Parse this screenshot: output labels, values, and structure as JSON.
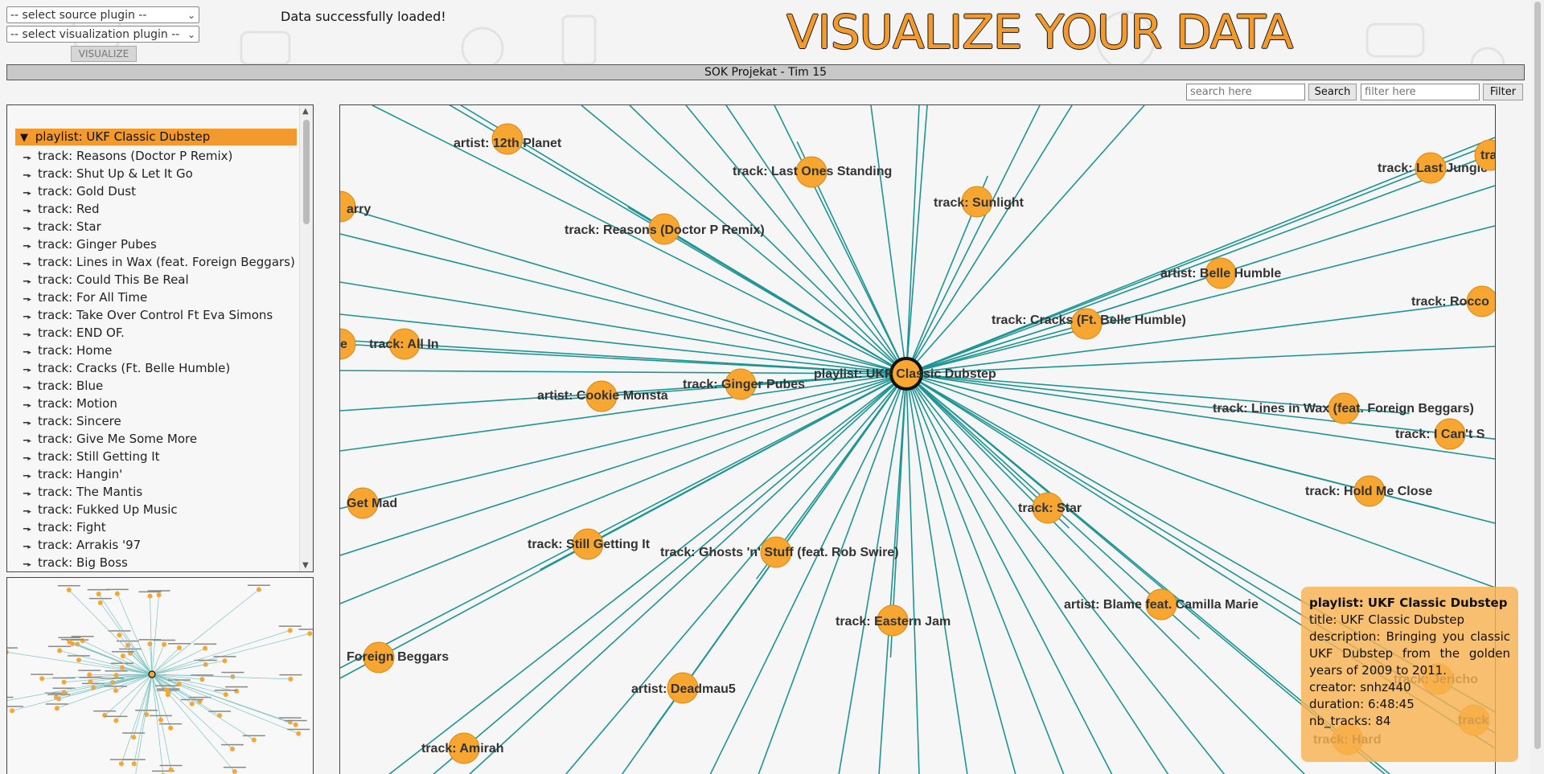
{
  "controls": {
    "source_select": "-- select source plugin --",
    "vis_select": "-- select visualization plugin --",
    "visualize_label": "VISUALIZE",
    "status": "Data successfully loaded!",
    "brand_title": "VISUALIZE YOUR DATA",
    "header": "SOK Projekat - Tim 15",
    "search_placeholder": "search here",
    "search_label": "Search",
    "filter_placeholder": "filter here",
    "filter_label": "Filter"
  },
  "tree": {
    "root": "playlist: UKF Classic Dubstep",
    "items": [
      "track: Reasons (Doctor P Remix)",
      "track: Shut Up & Let It Go",
      "track: Gold Dust",
      "track: Red",
      "track: Star",
      "track: Ginger Pubes",
      "track: Lines in Wax (feat. Foreign Beggars)",
      "track: Could This Be Real",
      "track: For All Time",
      "track: Take Over Control Ft Eva Simons",
      "track: END OF.",
      "track: Home",
      "track: Cracks (Ft. Belle Humble)",
      "track: Blue",
      "track: Motion",
      "track: Sincere",
      "track: Give Me Some More",
      "track: Still Getting It",
      "track: Hangin'",
      "track: The Mantis",
      "track: Fukked Up Music",
      "track: Fight",
      "track: Arrakis '97",
      "track: Big Boss"
    ]
  },
  "graph": {
    "center_label": "playlist: UKF Classic Dubstep",
    "node_labels": [
      "artist: 12th Planet",
      "track: Last Ones Standing",
      "track: Sunlight",
      "track: Last Jungle",
      "arry",
      "track: Reasons (Doctor P Remix)",
      "artist: Belle Humble",
      "track: Rocco",
      "track: Cracks (Ft. Belle Humble)",
      "track: All In",
      "track: Ginger Pubes",
      "artist: Cookie Monsta",
      "track: Lines in Wax (feat. Foreign Beggars)",
      "track: I Can't S",
      "track: Hold Me Close",
      "Get Mad",
      "track: Star",
      "track: Still Getting It",
      "track: Ghosts 'n' Stuff (feat. Rob Swire)",
      "artist: Blame feat. Camilla Marie",
      "track: Eastern Jam",
      "Foreign Beggars",
      "artist: Deadmau5",
      "track: Amirah",
      "track: Jericho",
      "track: Hard",
      "track",
      "tra",
      "e"
    ]
  },
  "tooltip": {
    "title": "playlist: UKF Classic Dubstep",
    "title_line": "title: UKF Classic Dubstep",
    "description": "description: Bringing you classic UKF Dubstep from the golden years of 2009 to 2011.",
    "creator": "creator: snhz440",
    "duration": "duration: 6:48:45",
    "nb_tracks": "nb_tracks: 84"
  }
}
